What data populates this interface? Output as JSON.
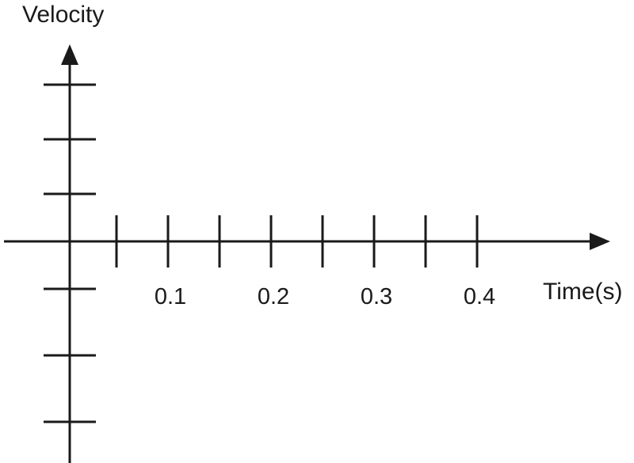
{
  "chart_data": {
    "type": "line",
    "title": "",
    "xlabel": "Time(s)",
    "ylabel": "Velocity",
    "x_tick_labels": [
      "0.1",
      "0.2",
      "0.3",
      "0.4"
    ],
    "x_tick_values": [
      0.1,
      0.2,
      0.3,
      0.4
    ],
    "x_minor_ticks": [
      0.05,
      0.1,
      0.15,
      0.2,
      0.25,
      0.3,
      0.35,
      0.4
    ],
    "y_ticks_positive": 3,
    "y_ticks_negative": 3,
    "series": [],
    "grid": false,
    "axis_color": "#1a1a1a"
  }
}
